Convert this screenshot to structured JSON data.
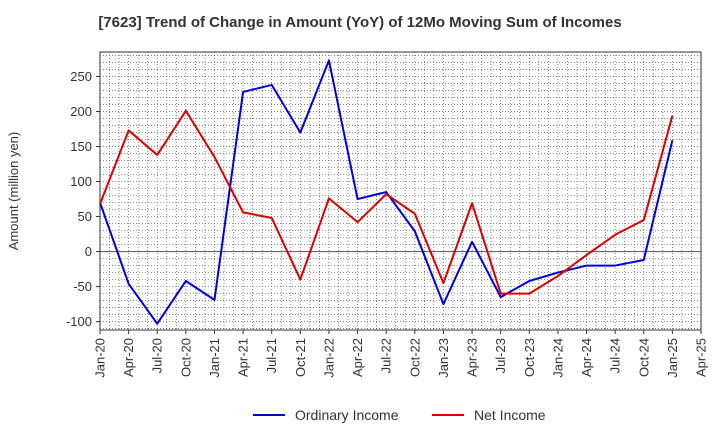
{
  "chart_data": {
    "type": "line",
    "title": "[7623]  Trend of Change in Amount (YoY) of 12Mo Moving Sum of Incomes",
    "ylabel": "Amount (million yen)",
    "xlabel": "",
    "ylim": [
      -112,
      285
    ],
    "yticks": [
      -100,
      -50,
      0,
      50,
      100,
      150,
      200,
      250
    ],
    "categories": [
      "Jan-20",
      "Apr-20",
      "Jul-20",
      "Oct-20",
      "Jan-21",
      "Apr-21",
      "Jul-21",
      "Oct-21",
      "Jan-22",
      "Apr-22",
      "Jul-22",
      "Oct-22",
      "Jan-23",
      "Apr-23",
      "Jul-23",
      "Oct-23",
      "Jan-24",
      "Apr-24",
      "Jul-24",
      "Oct-24",
      "Jan-25",
      "Apr-25"
    ],
    "grid": true,
    "legend_position": "bottom",
    "series": [
      {
        "name": "Ordinary Income",
        "color": "#0000dd",
        "values": [
          70,
          -46,
          -103,
          -42,
          -69,
          228,
          238,
          170,
          273,
          75,
          85,
          29,
          -75,
          14,
          -65,
          -42,
          -30,
          -20,
          -20,
          -12,
          159,
          null
        ]
      },
      {
        "name": "Net Income",
        "color": "#dd0000",
        "values": [
          68,
          173,
          138,
          201,
          135,
          56,
          48,
          -40,
          76,
          42,
          82,
          54,
          -45,
          69,
          -60,
          -60,
          -35,
          -5,
          24,
          45,
          194,
          null
        ]
      }
    ]
  }
}
